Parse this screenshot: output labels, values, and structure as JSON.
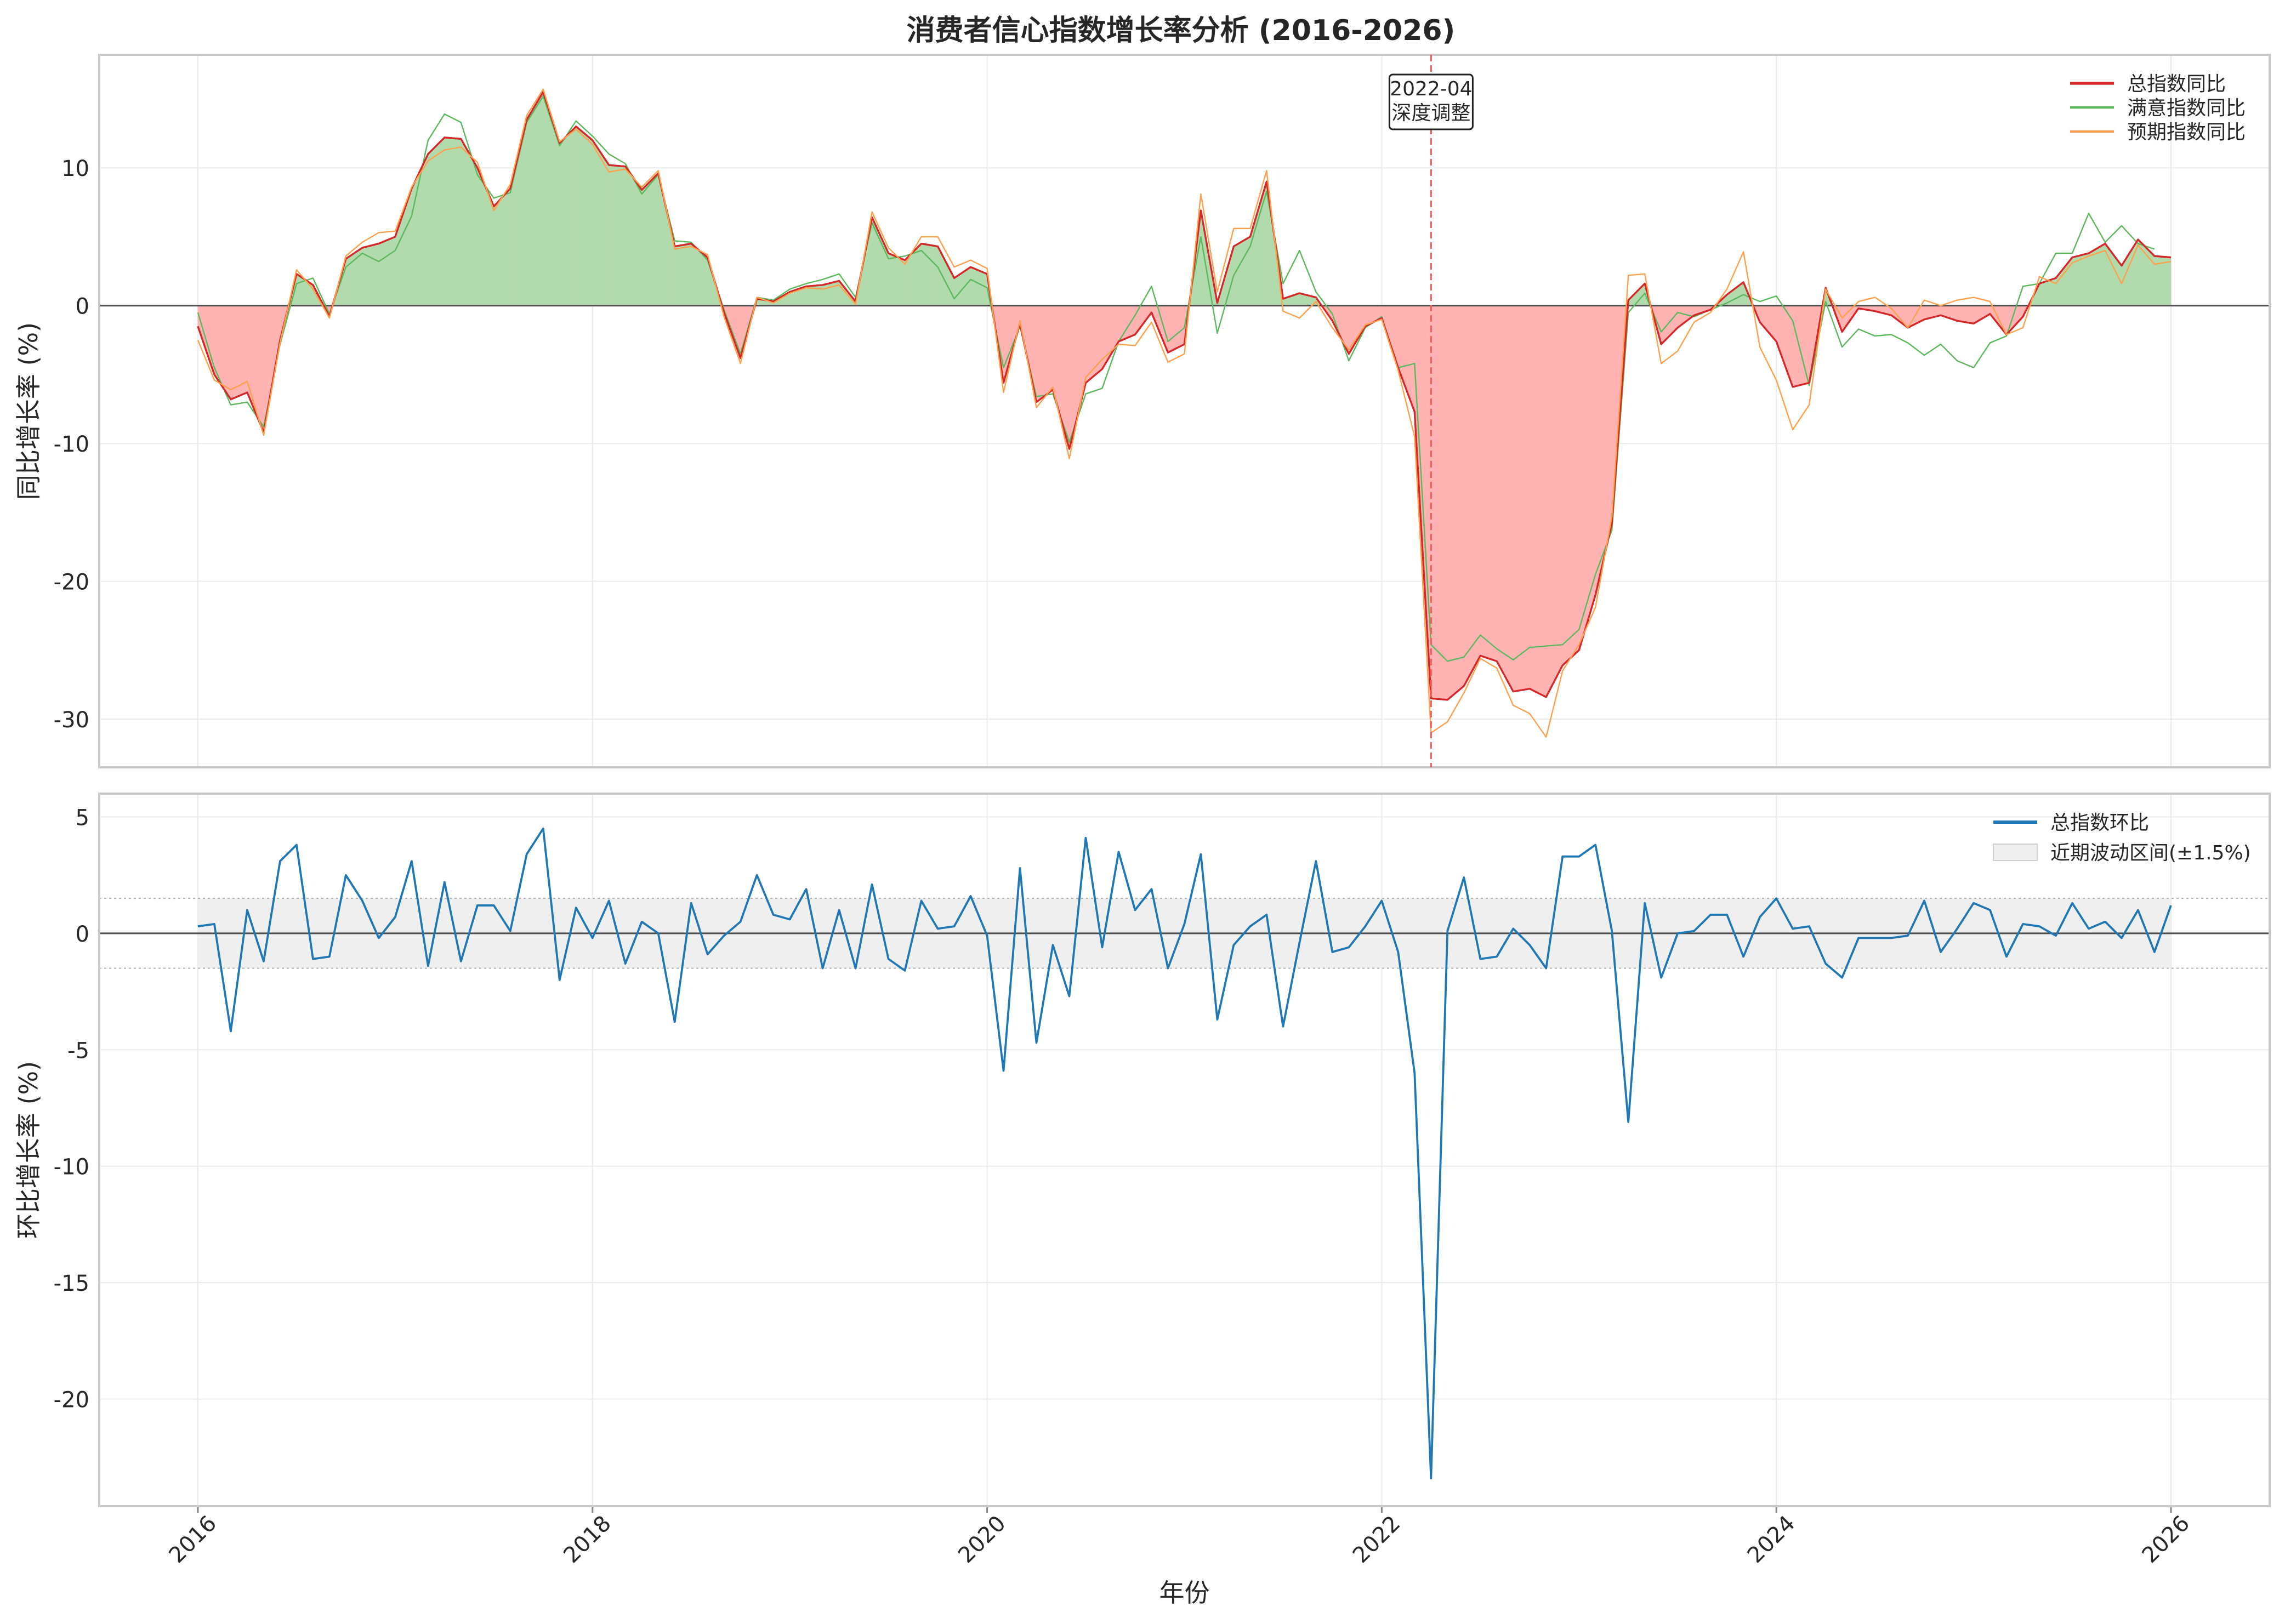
{
  "title": "消费者信心指数增长率分析 (2016-2026)",
  "chart_data": [
    {
      "type": "line",
      "ylabel": "同比增长率 (%)",
      "xlabel": "",
      "xlim": [
        2015.5,
        2026.5
      ],
      "ylim": [
        -33.5,
        18.2
      ],
      "yticks": [
        10,
        0,
        -10,
        -20,
        -30
      ],
      "ytick_labels": [
        "10",
        "0",
        "-10",
        "-20",
        "-30"
      ],
      "grid": true,
      "legend_position": "top-right",
      "zero_line": 0,
      "fill_between_zero": {
        "positive_color": "#b2dbad",
        "negative_color": "#ffb3b3",
        "reference_series": "总指数同比"
      },
      "annotation": {
        "date": "2022-04",
        "x": 2022.25,
        "lines": [
          "2022-04",
          "深度调整"
        ],
        "line_color": "#ff5a5a"
      },
      "series": [
        {
          "name": "总指数同比",
          "color": "#d62728",
          "width": 3.2,
          "x_start": 2016.0,
          "x_step": 0.08333,
          "values": [
            -1.5,
            -5.0,
            -6.8,
            -6.3,
            -9.2,
            -2.5,
            2.3,
            1.5,
            -0.8,
            3.4,
            4.2,
            4.5,
            5.0,
            8.5,
            11.0,
            12.2,
            12.1,
            10.0,
            7.2,
            8.5,
            13.5,
            15.5,
            11.8,
            13.0,
            12.0,
            10.2,
            10.1,
            8.4,
            9.6,
            4.3,
            4.5,
            3.5,
            -0.5,
            -3.8,
            0.5,
            0.3,
            1.0,
            1.4,
            1.5,
            1.8,
            0.3,
            6.4,
            3.8,
            3.3,
            4.5,
            4.3,
            2.0,
            2.8,
            2.3,
            -5.6,
            -1.3,
            -7.0,
            -6.1,
            -10.4,
            -5.6,
            -4.6,
            -2.6,
            -2.1,
            -0.5,
            -3.4,
            -2.8,
            6.9,
            0.2,
            4.3,
            5.0,
            9.0,
            0.5,
            0.9,
            0.6,
            -1.1,
            -3.5,
            -1.5,
            -0.9,
            -4.5,
            -7.7,
            -28.5,
            -28.6,
            -27.6,
            -25.4,
            -25.8,
            -28.0,
            -27.8,
            -28.4,
            -26.1,
            -25.0,
            -21.0,
            -15.8,
            0.4,
            1.6,
            -2.8,
            -1.6,
            -0.7,
            -0.3,
            0.8,
            1.7,
            -1.2,
            -2.6,
            -5.9,
            -5.6,
            1.3,
            -1.9,
            -0.2,
            -0.4,
            -0.7,
            -1.6,
            -1.0,
            -0.7,
            -1.1,
            -1.3,
            -0.6,
            -2.1,
            -0.8,
            1.6,
            2.0,
            3.5,
            3.8,
            4.5,
            2.9,
            4.8,
            3.6,
            3.5
          ]
        },
        {
          "name": "满意指数同比",
          "color": "#5cb85c",
          "width": 2.4,
          "x_start": 2016.0,
          "x_step": 0.08333,
          "values": [
            -0.5,
            -4.5,
            -7.2,
            -7.0,
            -8.8,
            -2.8,
            1.6,
            2.0,
            -0.6,
            2.8,
            3.8,
            3.2,
            4.0,
            6.5,
            12.0,
            13.9,
            13.3,
            9.5,
            7.8,
            8.2,
            13.3,
            15.2,
            11.6,
            13.4,
            12.3,
            11.0,
            10.3,
            8.1,
            9.5,
            4.7,
            4.6,
            3.3,
            -0.3,
            -3.5,
            0.6,
            0.4,
            1.2,
            1.6,
            1.9,
            2.3,
            0.6,
            6.0,
            3.4,
            3.6,
            4.0,
            2.8,
            0.5,
            1.9,
            1.3,
            -4.5,
            -1.5,
            -6.6,
            -6.4,
            -9.9,
            -6.4,
            -6.0,
            -2.6,
            -0.7,
            1.4,
            -2.6,
            -1.6,
            5.0,
            -2.0,
            2.2,
            4.3,
            8.3,
            1.6,
            4.0,
            1.0,
            -0.6,
            -4.0,
            -1.6,
            -0.8,
            -4.5,
            -4.2,
            -24.6,
            -25.8,
            -25.5,
            -23.9,
            -24.9,
            -25.7,
            -24.8,
            -24.7,
            -24.6,
            -23.5,
            -19.5,
            -16.3,
            -0.5,
            0.9,
            -1.9,
            -0.5,
            -0.8,
            -0.3,
            0.2,
            0.8,
            0.3,
            0.7,
            -1.1,
            -5.8,
            0.3,
            -3.0,
            -1.7,
            -2.2,
            -2.1,
            -2.7,
            -3.6,
            -2.8,
            -4.0,
            -4.5,
            -2.7,
            -2.2,
            1.4,
            1.6,
            3.8,
            3.8,
            6.7,
            4.6,
            5.8,
            4.5,
            4.1
          ]
        },
        {
          "name": "预期指数同比",
          "color": "#ffa04d",
          "width": 2.4,
          "x_start": 2016.0,
          "x_step": 0.08333,
          "values": [
            -2.5,
            -5.4,
            -6.1,
            -5.5,
            -9.4,
            -2.7,
            2.6,
            1.2,
            -0.9,
            3.6,
            4.6,
            5.3,
            5.4,
            8.6,
            10.5,
            11.3,
            11.5,
            10.4,
            6.9,
            8.8,
            13.8,
            15.7,
            11.9,
            12.8,
            11.7,
            9.7,
            9.9,
            8.6,
            9.8,
            4.1,
            4.3,
            3.7,
            -0.8,
            -4.2,
            0.6,
            0.2,
            0.9,
            1.3,
            1.2,
            1.5,
            0.1,
            6.8,
            4.2,
            3.0,
            5.0,
            5.0,
            2.8,
            3.3,
            2.7,
            -6.3,
            -1.1,
            -7.4,
            -5.9,
            -11.1,
            -5.2,
            -3.9,
            -2.8,
            -2.9,
            -1.2,
            -4.1,
            -3.5,
            8.1,
            1.0,
            5.6,
            5.6,
            9.8,
            -0.4,
            -0.9,
            0.3,
            -1.6,
            -3.2,
            -1.4,
            -1.0,
            -4.7,
            -9.5,
            -31.0,
            -30.2,
            -28.1,
            -25.6,
            -26.3,
            -29.0,
            -29.6,
            -31.3,
            -26.5,
            -24.6,
            -21.9,
            -15.3,
            2.2,
            2.3,
            -4.2,
            -3.3,
            -1.2,
            -0.5,
            1.2,
            3.9,
            -3.0,
            -5.4,
            -9.0,
            -7.2,
            1.2,
            -0.9,
            0.3,
            0.6,
            -0.2,
            -1.6,
            0.4,
            0.0,
            0.4,
            0.6,
            0.3,
            -2.1,
            -1.6,
            2.1,
            1.6,
            3.1,
            3.6,
            4.0,
            1.6,
            4.4,
            3.0,
            3.2
          ]
        }
      ]
    },
    {
      "type": "line",
      "ylabel": "环比增长率 (%)",
      "xlabel": "年份",
      "xlim": [
        2015.5,
        2026.5
      ],
      "ylim": [
        -24.6,
        6.0
      ],
      "yticks": [
        5,
        0,
        -5,
        -10,
        -15,
        -20
      ],
      "ytick_labels": [
        "5",
        "0",
        "-5",
        "-10",
        "-15",
        "-20"
      ],
      "xticks": [
        2016,
        2018,
        2020,
        2022,
        2024,
        2026
      ],
      "xtick_labels": [
        "2016",
        "2018",
        "2020",
        "2022",
        "2024",
        "2026"
      ],
      "grid": true,
      "legend_position": "top-right",
      "zero_line": 0,
      "band": {
        "name": "近期波动区间(±1.5%)",
        "low": -1.5,
        "high": 1.5,
        "color": "#efefef"
      },
      "series": [
        {
          "name": "总指数环比",
          "color": "#1f77b4",
          "width": 3.8,
          "x_start": 2016.0,
          "x_step": 0.08333,
          "values": [
            0.3,
            0.4,
            -4.2,
            1.0,
            -1.2,
            3.1,
            3.8,
            -1.1,
            -1.0,
            2.5,
            1.4,
            -0.2,
            0.7,
            3.1,
            -1.4,
            2.2,
            -1.2,
            1.2,
            1.2,
            0.1,
            3.4,
            4.5,
            -2.0,
            1.1,
            -0.2,
            1.4,
            -1.3,
            0.5,
            0.0,
            -3.8,
            1.3,
            -0.9,
            -0.1,
            0.5,
            2.5,
            0.8,
            0.6,
            1.9,
            -1.5,
            1.0,
            -1.5,
            2.1,
            -1.1,
            -1.6,
            1.4,
            0.2,
            0.3,
            1.6,
            -0.1,
            -5.9,
            2.8,
            -4.7,
            -0.5,
            -2.7,
            4.1,
            -0.6,
            3.5,
            1.0,
            1.9,
            -1.5,
            0.4,
            3.4,
            -3.7,
            -0.5,
            0.3,
            0.8,
            -4.0,
            -0.4,
            3.1,
            -0.8,
            -0.6,
            0.3,
            1.4,
            -0.8,
            -6.0,
            -23.4,
            0.1,
            2.4,
            -1.1,
            -1.0,
            0.2,
            -0.5,
            -1.5,
            3.3,
            3.3,
            3.8,
            0.1,
            -8.1,
            1.3,
            -1.9,
            0.0,
            0.1,
            0.8,
            0.8,
            -1.0,
            0.7,
            1.5,
            0.2,
            0.3,
            -1.3,
            -1.9,
            -0.2,
            -0.2,
            -0.2,
            -0.1,
            1.4,
            -0.8,
            0.2,
            1.3,
            1.0,
            -1.0,
            0.4,
            0.3,
            -0.1,
            1.3,
            0.2,
            0.5,
            -0.2,
            1.0,
            -0.8,
            1.2
          ]
        }
      ]
    }
  ]
}
